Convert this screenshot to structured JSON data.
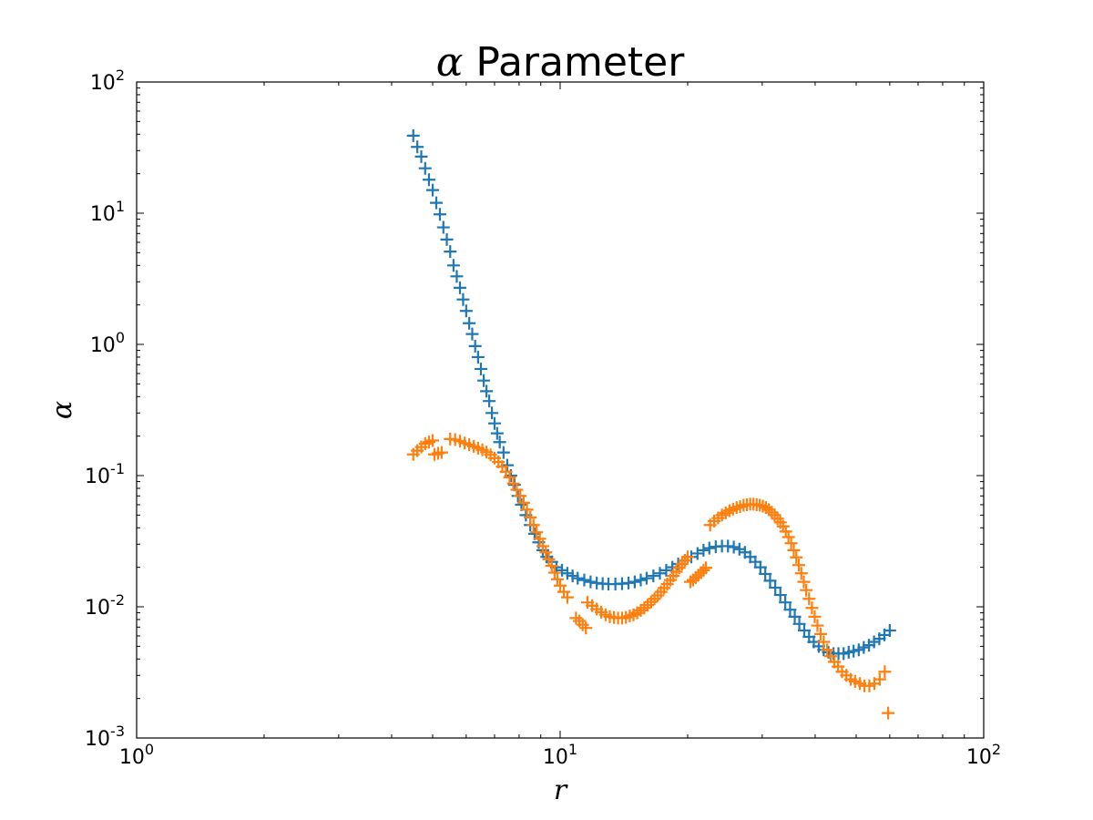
{
  "chart_data": {
    "type": "scatter",
    "title_symbol": "α",
    "title_text": " Parameter",
    "xlabel": "r",
    "ylabel": "α",
    "x_scale": "log",
    "y_scale": "log",
    "xlim": [
      1,
      100
    ],
    "ylim": [
      0.001,
      100
    ],
    "x_ticks": [
      {
        "value": 1,
        "base": "10",
        "exp": "0"
      },
      {
        "value": 10,
        "base": "10",
        "exp": "1"
      },
      {
        "value": 100,
        "base": "10",
        "exp": "2"
      }
    ],
    "y_ticks": [
      {
        "value": 0.001,
        "base": "10",
        "exp": "-3"
      },
      {
        "value": 0.01,
        "base": "10",
        "exp": "-2"
      },
      {
        "value": 0.1,
        "base": "10",
        "exp": "-1"
      },
      {
        "value": 1,
        "base": "10",
        "exp": "0"
      },
      {
        "value": 10,
        "base": "10",
        "exp": "1"
      },
      {
        "value": 100,
        "base": "10",
        "exp": "2"
      }
    ],
    "marker": "+",
    "grid": false,
    "series": [
      {
        "color": "#1f77b4",
        "points": [
          [
            4.5,
            39
          ],
          [
            4.6,
            32
          ],
          [
            4.7,
            27
          ],
          [
            4.8,
            22
          ],
          [
            4.9,
            18
          ],
          [
            5.0,
            15
          ],
          [
            5.1,
            12
          ],
          [
            5.2,
            9.8
          ],
          [
            5.3,
            7.8
          ],
          [
            5.4,
            6.3
          ],
          [
            5.5,
            5.1
          ],
          [
            5.6,
            4.0
          ],
          [
            5.7,
            3.3
          ],
          [
            5.8,
            2.7
          ],
          [
            5.9,
            2.2
          ],
          [
            6.0,
            1.8
          ],
          [
            6.1,
            1.45
          ],
          [
            6.2,
            1.2
          ],
          [
            6.3,
            0.97
          ],
          [
            6.4,
            0.8
          ],
          [
            6.5,
            0.65
          ],
          [
            6.6,
            0.53
          ],
          [
            6.7,
            0.44
          ],
          [
            6.8,
            0.37
          ],
          [
            6.9,
            0.3
          ],
          [
            7.0,
            0.25
          ],
          [
            7.1,
            0.21
          ],
          [
            7.2,
            0.18
          ],
          [
            7.35,
            0.15
          ],
          [
            7.5,
            0.12
          ],
          [
            7.65,
            0.1
          ],
          [
            7.8,
            0.085
          ],
          [
            7.95,
            0.07
          ],
          [
            8.1,
            0.06
          ],
          [
            8.3,
            0.05
          ],
          [
            8.5,
            0.042
          ],
          [
            8.7,
            0.036
          ],
          [
            8.9,
            0.031
          ],
          [
            9.1,
            0.027
          ],
          [
            9.3,
            0.024
          ],
          [
            9.55,
            0.022
          ],
          [
            9.8,
            0.02
          ],
          [
            10.1,
            0.019
          ],
          [
            10.4,
            0.018
          ],
          [
            10.7,
            0.0172
          ],
          [
            11.0,
            0.0165
          ],
          [
            11.4,
            0.016
          ],
          [
            11.8,
            0.0155
          ],
          [
            12.2,
            0.0152
          ],
          [
            12.6,
            0.015
          ],
          [
            13.0,
            0.0149
          ],
          [
            13.5,
            0.0149
          ],
          [
            14.0,
            0.015
          ],
          [
            14.5,
            0.0152
          ],
          [
            15.0,
            0.0155
          ],
          [
            15.5,
            0.016
          ],
          [
            16.0,
            0.0165
          ],
          [
            16.6,
            0.0172
          ],
          [
            17.2,
            0.018
          ],
          [
            17.8,
            0.019
          ],
          [
            18.4,
            0.02
          ],
          [
            19.0,
            0.0212
          ],
          [
            19.7,
            0.0225
          ],
          [
            20.4,
            0.024
          ],
          [
            21.1,
            0.0255
          ],
          [
            21.8,
            0.027
          ],
          [
            22.5,
            0.028
          ],
          [
            23.3,
            0.0287
          ],
          [
            24.1,
            0.029
          ],
          [
            24.9,
            0.029
          ],
          [
            25.7,
            0.0285
          ],
          [
            26.5,
            0.0275
          ],
          [
            27.3,
            0.026
          ],
          [
            28.1,
            0.024
          ],
          [
            28.9,
            0.022
          ],
          [
            29.7,
            0.02
          ],
          [
            30.5,
            0.0178
          ],
          [
            31.3,
            0.0158
          ],
          [
            32.2,
            0.014
          ],
          [
            33.1,
            0.0123
          ],
          [
            34.0,
            0.0108
          ],
          [
            34.9,
            0.0095
          ],
          [
            35.8,
            0.0084
          ],
          [
            36.7,
            0.0074
          ],
          [
            37.7,
            0.0066
          ],
          [
            38.7,
            0.0059
          ],
          [
            39.7,
            0.0054
          ],
          [
            40.8,
            0.005
          ],
          [
            41.9,
            0.0047
          ],
          [
            43.0,
            0.0045
          ],
          [
            44.2,
            0.0044
          ],
          [
            45.4,
            0.0044
          ],
          [
            46.7,
            0.0044
          ],
          [
            48.0,
            0.0045
          ],
          [
            49.3,
            0.0046
          ],
          [
            50.7,
            0.0047
          ],
          [
            52.1,
            0.0049
          ],
          [
            53.6,
            0.0051
          ],
          [
            55.1,
            0.0054
          ],
          [
            56.7,
            0.0057
          ],
          [
            58.3,
            0.0061
          ],
          [
            60.0,
            0.0066
          ]
        ]
      },
      {
        "color": "#ff7f0e",
        "points": [
          [
            4.5,
            0.145
          ],
          [
            4.6,
            0.155
          ],
          [
            4.7,
            0.165
          ],
          [
            4.8,
            0.175
          ],
          [
            4.9,
            0.18
          ],
          [
            5.0,
            0.185
          ],
          [
            5.05,
            0.145
          ],
          [
            5.15,
            0.148
          ],
          [
            5.25,
            0.15
          ],
          [
            5.5,
            0.19
          ],
          [
            5.65,
            0.188
          ],
          [
            5.8,
            0.183
          ],
          [
            5.95,
            0.177
          ],
          [
            6.1,
            0.172
          ],
          [
            6.25,
            0.167
          ],
          [
            6.4,
            0.162
          ],
          [
            6.55,
            0.157
          ],
          [
            6.7,
            0.151
          ],
          [
            6.85,
            0.144
          ],
          [
            7.0,
            0.136
          ],
          [
            7.15,
            0.127
          ],
          [
            7.3,
            0.117
          ],
          [
            7.45,
            0.107
          ],
          [
            7.6,
            0.097
          ],
          [
            7.75,
            0.087
          ],
          [
            7.9,
            0.078
          ],
          [
            8.05,
            0.07
          ],
          [
            8.2,
            0.062
          ],
          [
            8.35,
            0.055
          ],
          [
            8.5,
            0.048
          ],
          [
            8.65,
            0.042
          ],
          [
            8.8,
            0.037
          ],
          [
            8.95,
            0.033
          ],
          [
            9.1,
            0.029
          ],
          [
            9.25,
            0.026
          ],
          [
            9.4,
            0.023
          ],
          [
            9.55,
            0.0205
          ],
          [
            9.7,
            0.0182
          ],
          [
            9.85,
            0.0162
          ],
          [
            10.0,
            0.0145
          ],
          [
            10.2,
            0.013
          ],
          [
            10.4,
            0.0118
          ],
          [
            10.9,
            0.0082
          ],
          [
            11.1,
            0.0078
          ],
          [
            11.3,
            0.0073
          ],
          [
            11.5,
            0.0069
          ],
          [
            11.6,
            0.0108
          ],
          [
            11.9,
            0.0102
          ],
          [
            12.2,
            0.0096
          ],
          [
            12.5,
            0.0091
          ],
          [
            12.8,
            0.0087
          ],
          [
            13.1,
            0.0084
          ],
          [
            13.4,
            0.0083
          ],
          [
            13.7,
            0.0082
          ],
          [
            14.0,
            0.0082
          ],
          [
            14.3,
            0.0083
          ],
          [
            14.6,
            0.0085
          ],
          [
            14.9,
            0.0087
          ],
          [
            15.2,
            0.009
          ],
          [
            15.5,
            0.0094
          ],
          [
            15.8,
            0.0098
          ],
          [
            16.1,
            0.0103
          ],
          [
            16.4,
            0.0109
          ],
          [
            16.7,
            0.0115
          ],
          [
            17.0,
            0.0122
          ],
          [
            17.3,
            0.013
          ],
          [
            17.6,
            0.0139
          ],
          [
            17.9,
            0.0149
          ],
          [
            18.2,
            0.016
          ],
          [
            18.5,
            0.0172
          ],
          [
            18.8,
            0.0185
          ],
          [
            19.1,
            0.0198
          ],
          [
            19.4,
            0.0212
          ],
          [
            19.7,
            0.0226
          ],
          [
            20.0,
            0.024
          ],
          [
            20.3,
            0.0155
          ],
          [
            20.6,
            0.016
          ],
          [
            20.9,
            0.0167
          ],
          [
            21.2,
            0.0174
          ],
          [
            21.5,
            0.0182
          ],
          [
            21.8,
            0.019
          ],
          [
            22.1,
            0.0198
          ],
          [
            22.6,
            0.042
          ],
          [
            23.1,
            0.045
          ],
          [
            23.6,
            0.0475
          ],
          [
            24.1,
            0.05
          ],
          [
            24.6,
            0.052
          ],
          [
            25.1,
            0.054
          ],
          [
            25.6,
            0.0555
          ],
          [
            26.1,
            0.057
          ],
          [
            26.6,
            0.058
          ],
          [
            27.1,
            0.0595
          ],
          [
            27.6,
            0.06
          ],
          [
            28.1,
            0.0605
          ],
          [
            28.6,
            0.0605
          ],
          [
            29.1,
            0.06
          ],
          [
            29.6,
            0.0595
          ],
          [
            30.1,
            0.0585
          ],
          [
            30.6,
            0.057
          ],
          [
            31.1,
            0.055
          ],
          [
            31.6,
            0.0525
          ],
          [
            32.1,
            0.05
          ],
          [
            32.6,
            0.047
          ],
          [
            33.1,
            0.044
          ],
          [
            33.6,
            0.041
          ],
          [
            34.1,
            0.0375
          ],
          [
            34.6,
            0.034
          ],
          [
            35.1,
            0.0305
          ],
          [
            35.6,
            0.027
          ],
          [
            36.1,
            0.0238
          ],
          [
            36.6,
            0.0208
          ],
          [
            37.1,
            0.018
          ],
          [
            37.6,
            0.0155
          ],
          [
            38.1,
            0.0134
          ],
          [
            38.7,
            0.0115
          ],
          [
            39.3,
            0.0098
          ],
          [
            39.9,
            0.0084
          ],
          [
            40.5,
            0.0072
          ],
          [
            41.2,
            0.0062
          ],
          [
            41.9,
            0.0054
          ],
          [
            42.7,
            0.0047
          ],
          [
            43.5,
            0.0042
          ],
          [
            44.4,
            0.0038
          ],
          [
            45.3,
            0.0035
          ],
          [
            46.3,
            0.0032
          ],
          [
            47.4,
            0.003
          ],
          [
            48.5,
            0.0028
          ],
          [
            49.7,
            0.0027
          ],
          [
            51.0,
            0.0026
          ],
          [
            52.3,
            0.0025
          ],
          [
            53.7,
            0.0025
          ],
          [
            55.2,
            0.0026
          ],
          [
            56.8,
            0.0028
          ],
          [
            58.4,
            0.0032
          ],
          [
            59.5,
            0.00155
          ]
        ]
      }
    ]
  }
}
